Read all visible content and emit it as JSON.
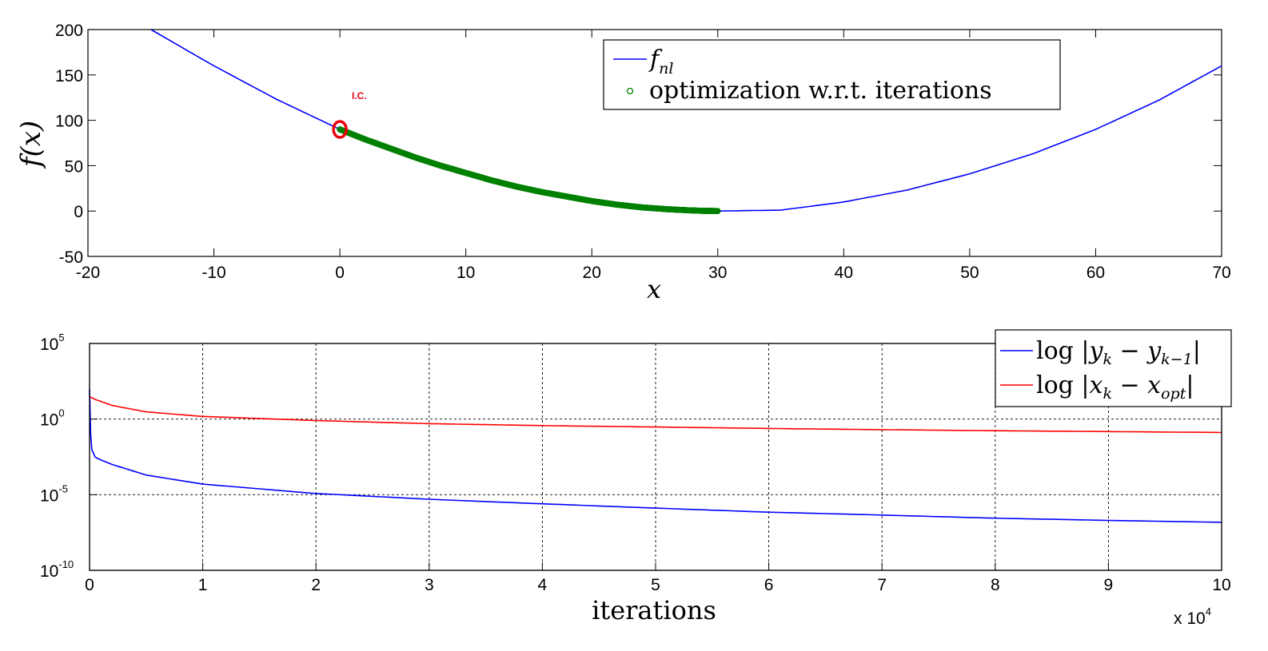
{
  "chart_data": [
    {
      "type": "line",
      "xlabel": "x",
      "ylabel": "f(x)",
      "xlim": [
        -20,
        70
      ],
      "ylim": [
        -50,
        200
      ],
      "xticks": [
        "-20",
        "-10",
        "0",
        "10",
        "20",
        "30",
        "40",
        "50",
        "60",
        "70"
      ],
      "yticks": [
        "-50",
        "0",
        "50",
        "100",
        "150",
        "200"
      ],
      "grid": false,
      "legend_position": "top-right",
      "annotation": {
        "text": "I.C.",
        "x": 0,
        "y": 90
      },
      "series": [
        {
          "name": "f_nl",
          "kind": "line",
          "color": "#0000ff",
          "x": [
            -15,
            -10,
            -5,
            0,
            5,
            10,
            15,
            20,
            25,
            30,
            35,
            40,
            45,
            50,
            55,
            60,
            65,
            70
          ],
          "y": [
            200,
            160,
            123,
            90,
            62,
            40,
            23,
            10,
            3,
            0,
            1,
            10,
            23,
            41,
            63,
            90,
            122,
            160
          ]
        },
        {
          "name": "optimization w.r.t. iterations",
          "kind": "markers",
          "color": "#008000",
          "x": [
            0,
            2,
            4,
            6,
            8,
            10,
            12,
            14,
            16,
            18,
            20,
            22,
            24,
            26,
            28,
            29,
            30
          ],
          "y": [
            90,
            79,
            69,
            59,
            50,
            42,
            34,
            27,
            21,
            16,
            11,
            7,
            4,
            2,
            0.6,
            0.2,
            0
          ]
        }
      ]
    },
    {
      "type": "line",
      "xlabel": "iterations",
      "x_multiplier": "x 10^4",
      "xlim": [
        0,
        10
      ],
      "ylim": [
        1e-10,
        100000.0
      ],
      "yscale": "log",
      "xticks": [
        "0",
        "1",
        "2",
        "3",
        "4",
        "5",
        "6",
        "7",
        "8",
        "9",
        "10"
      ],
      "yticks": [
        {
          "base": "10",
          "exp": "5"
        },
        {
          "base": "10",
          "exp": "0"
        },
        {
          "base": "10",
          "exp": "-5"
        },
        {
          "base": "10",
          "exp": "-10"
        }
      ],
      "grid": true,
      "legend_position": "top-right",
      "series": [
        {
          "name": "log |y_k − y_{k−1}|",
          "color": "#0000ff",
          "x": [
            0,
            0.01,
            0.02,
            0.05,
            0.1,
            0.2,
            0.5,
            1,
            2,
            3,
            4,
            5,
            6,
            7,
            8,
            9,
            10
          ],
          "y": [
            100.0,
            0.1,
            0.01,
            0.003,
            0.002,
            0.001,
            0.0002,
            5e-05,
            1.2e-05,
            5e-06,
            2.5e-06,
            1.3e-06,
            7e-07,
            4.5e-07,
            2.8e-07,
            2e-07,
            1.5e-07
          ]
        },
        {
          "name": "log |x_k − x_opt|",
          "color": "#ff0000",
          "x": [
            0,
            0.05,
            0.2,
            0.5,
            1,
            2,
            3,
            4,
            5,
            6,
            7,
            8,
            9,
            10
          ],
          "y": [
            30,
            20,
            8,
            3,
            1.5,
            0.8,
            0.5,
            0.37,
            0.3,
            0.24,
            0.2,
            0.17,
            0.15,
            0.13
          ]
        }
      ]
    }
  ],
  "legend_top": {
    "entries": [
      {
        "symbol": "f",
        "sub": "nl",
        "color": "#0000ff",
        "kind": "line"
      },
      {
        "text": "optimization w.r.t. iterations",
        "color": "#008000",
        "kind": "marker"
      }
    ]
  },
  "legend_bottom": {
    "entries": [
      {
        "pre": "log |",
        "v1": "y",
        "s1": "k",
        "mid": " − ",
        "v2": "y",
        "s2": "k−1",
        "post": "|",
        "color": "#0000ff"
      },
      {
        "pre": "log |",
        "v1": "x",
        "s1": "k",
        "mid": " − ",
        "v2": "x",
        "s2": "opt",
        "post": "|",
        "color": "#ff0000"
      }
    ]
  },
  "multiplier": {
    "base": "x 10",
    "exp": "4"
  }
}
